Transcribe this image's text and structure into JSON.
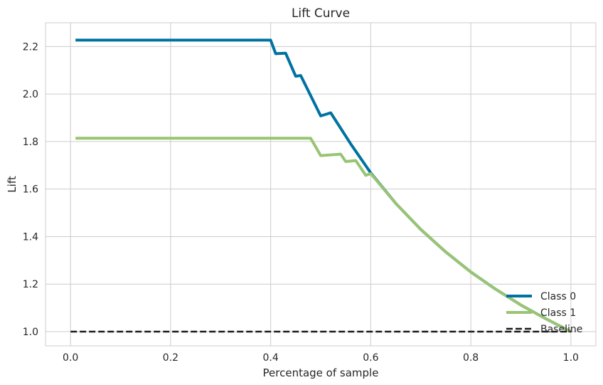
{
  "chart_data": {
    "type": "line",
    "title": "Lift Curve",
    "xlabel": "Percentage of sample",
    "ylabel": "Lift",
    "xlim": [
      -0.05,
      1.05
    ],
    "ylim": [
      0.94,
      2.3
    ],
    "xticks": [
      {
        "value": 0.0,
        "label": "0.0"
      },
      {
        "value": 0.2,
        "label": "0.2"
      },
      {
        "value": 0.4,
        "label": "0.4"
      },
      {
        "value": 0.6,
        "label": "0.6"
      },
      {
        "value": 0.8,
        "label": "0.8"
      },
      {
        "value": 1.0,
        "label": "1.0"
      }
    ],
    "yticks": [
      {
        "value": 1.0,
        "label": "1.0"
      },
      {
        "value": 1.2,
        "label": "1.2"
      },
      {
        "value": 1.4,
        "label": "1.4"
      },
      {
        "value": 1.6,
        "label": "1.6"
      },
      {
        "value": 1.8,
        "label": "1.8"
      },
      {
        "value": 2.0,
        "label": "2.0"
      },
      {
        "value": 2.2,
        "label": "2.2"
      }
    ],
    "grid": true,
    "legend_position": "lower-right",
    "series": [
      {
        "name": "Class 0",
        "color": "#0072a1",
        "dash": "solid",
        "x": [
          0.01,
          0.4,
          0.41,
          0.43,
          0.45,
          0.46,
          0.5,
          0.52,
          0.56,
          0.6,
          0.65,
          0.7,
          0.75,
          0.8,
          0.85,
          0.9,
          0.95,
          1.0
        ],
        "y": [
          2.227,
          2.227,
          2.17,
          2.172,
          2.075,
          2.078,
          1.908,
          1.921,
          1.79,
          1.668,
          1.54,
          1.43,
          1.335,
          1.251,
          1.178,
          1.112,
          1.054,
          1.0
        ]
      },
      {
        "name": "Class 1",
        "color": "#99c473",
        "dash": "solid",
        "x": [
          0.01,
          0.48,
          0.5,
          0.54,
          0.55,
          0.57,
          0.59,
          0.6,
          0.65,
          0.7,
          0.75,
          0.8,
          0.85,
          0.9,
          0.95,
          1.0
        ],
        "y": [
          1.814,
          1.814,
          1.741,
          1.747,
          1.716,
          1.72,
          1.658,
          1.665,
          1.54,
          1.43,
          1.335,
          1.251,
          1.178,
          1.112,
          1.054,
          1.0
        ]
      },
      {
        "name": "Baseline",
        "color": "#1a1a1a",
        "dash": "dashed",
        "x": [
          0.0,
          1.0
        ],
        "y": [
          1.0,
          1.0
        ]
      }
    ]
  }
}
